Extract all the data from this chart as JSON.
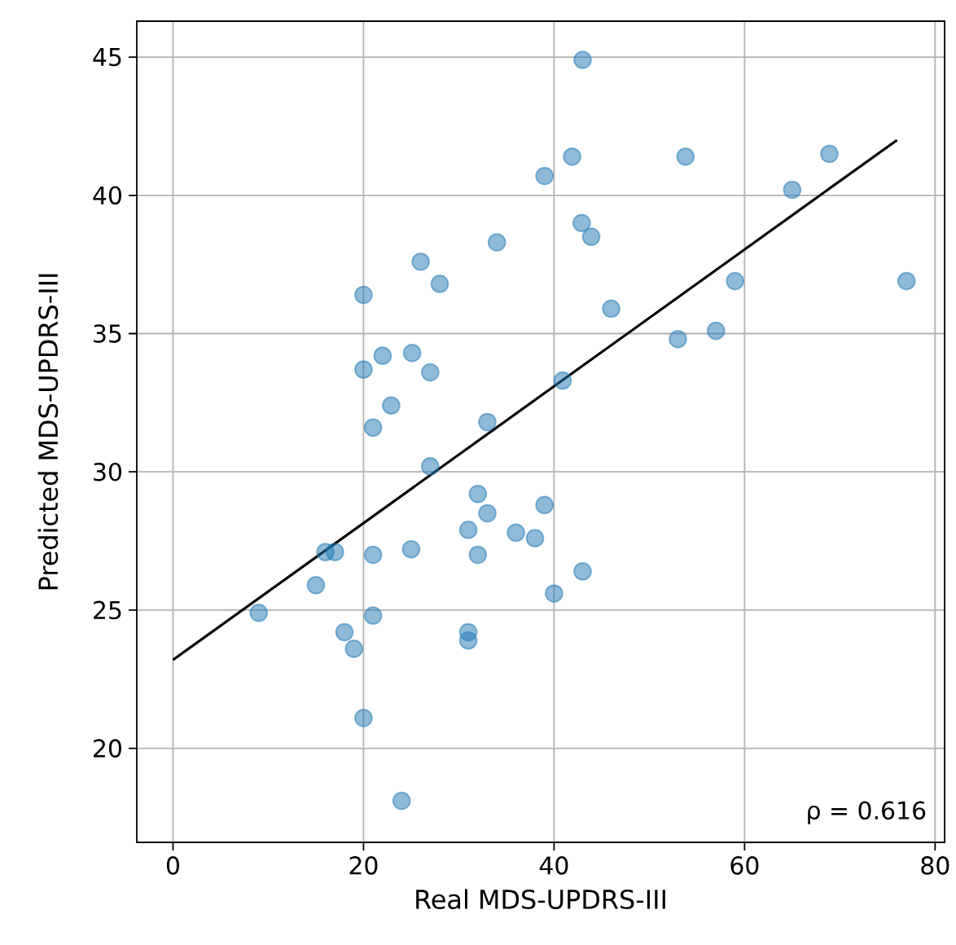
{
  "chart_data": {
    "type": "scatter",
    "xlabel": "Real MDS-UPDRS-III",
    "ylabel": "Predicted MDS-UPDRS-III",
    "xlim": [
      -3.8,
      81
    ],
    "ylim": [
      16.6,
      46.3
    ],
    "xticks": [
      0,
      20,
      40,
      60,
      80
    ],
    "yticks": [
      20,
      25,
      30,
      35,
      40,
      45
    ],
    "grid": true,
    "annotations": [
      {
        "text": "ρ =  0.616"
      }
    ],
    "series": [
      {
        "marker": "circle",
        "color": "#1f77b4",
        "x": [
          43,
          39,
          41.9,
          53.8,
          68.9,
          65,
          42.9,
          43.9,
          34,
          26,
          28,
          20,
          59,
          77,
          46,
          53,
          57,
          25.1,
          22,
          20,
          27,
          22.9,
          40.9,
          21,
          33,
          27,
          32,
          33,
          39,
          31,
          36,
          38,
          16,
          17,
          21,
          25,
          32,
          43,
          15,
          40,
          9,
          21,
          18,
          19,
          31,
          31,
          20,
          24
        ],
        "values": [
          44.9,
          40.7,
          41.4,
          41.4,
          41.5,
          40.2,
          39.0,
          38.5,
          38.3,
          37.6,
          36.8,
          36.4,
          36.9,
          36.9,
          35.9,
          34.8,
          35.1,
          34.3,
          34.2,
          33.7,
          33.6,
          32.4,
          33.3,
          31.6,
          31.8,
          30.2,
          29.2,
          28.5,
          28.8,
          27.9,
          27.8,
          27.6,
          27.1,
          27.1,
          27.0,
          27.2,
          27.0,
          26.4,
          25.9,
          25.6,
          24.9,
          24.8,
          24.2,
          23.6,
          24.2,
          23.9,
          21.1,
          18.1
        ]
      },
      {
        "type": "line",
        "marker": "none",
        "color": "#000000",
        "x": [
          0,
          76
        ],
        "values": [
          23.2,
          42.0
        ]
      }
    ]
  }
}
